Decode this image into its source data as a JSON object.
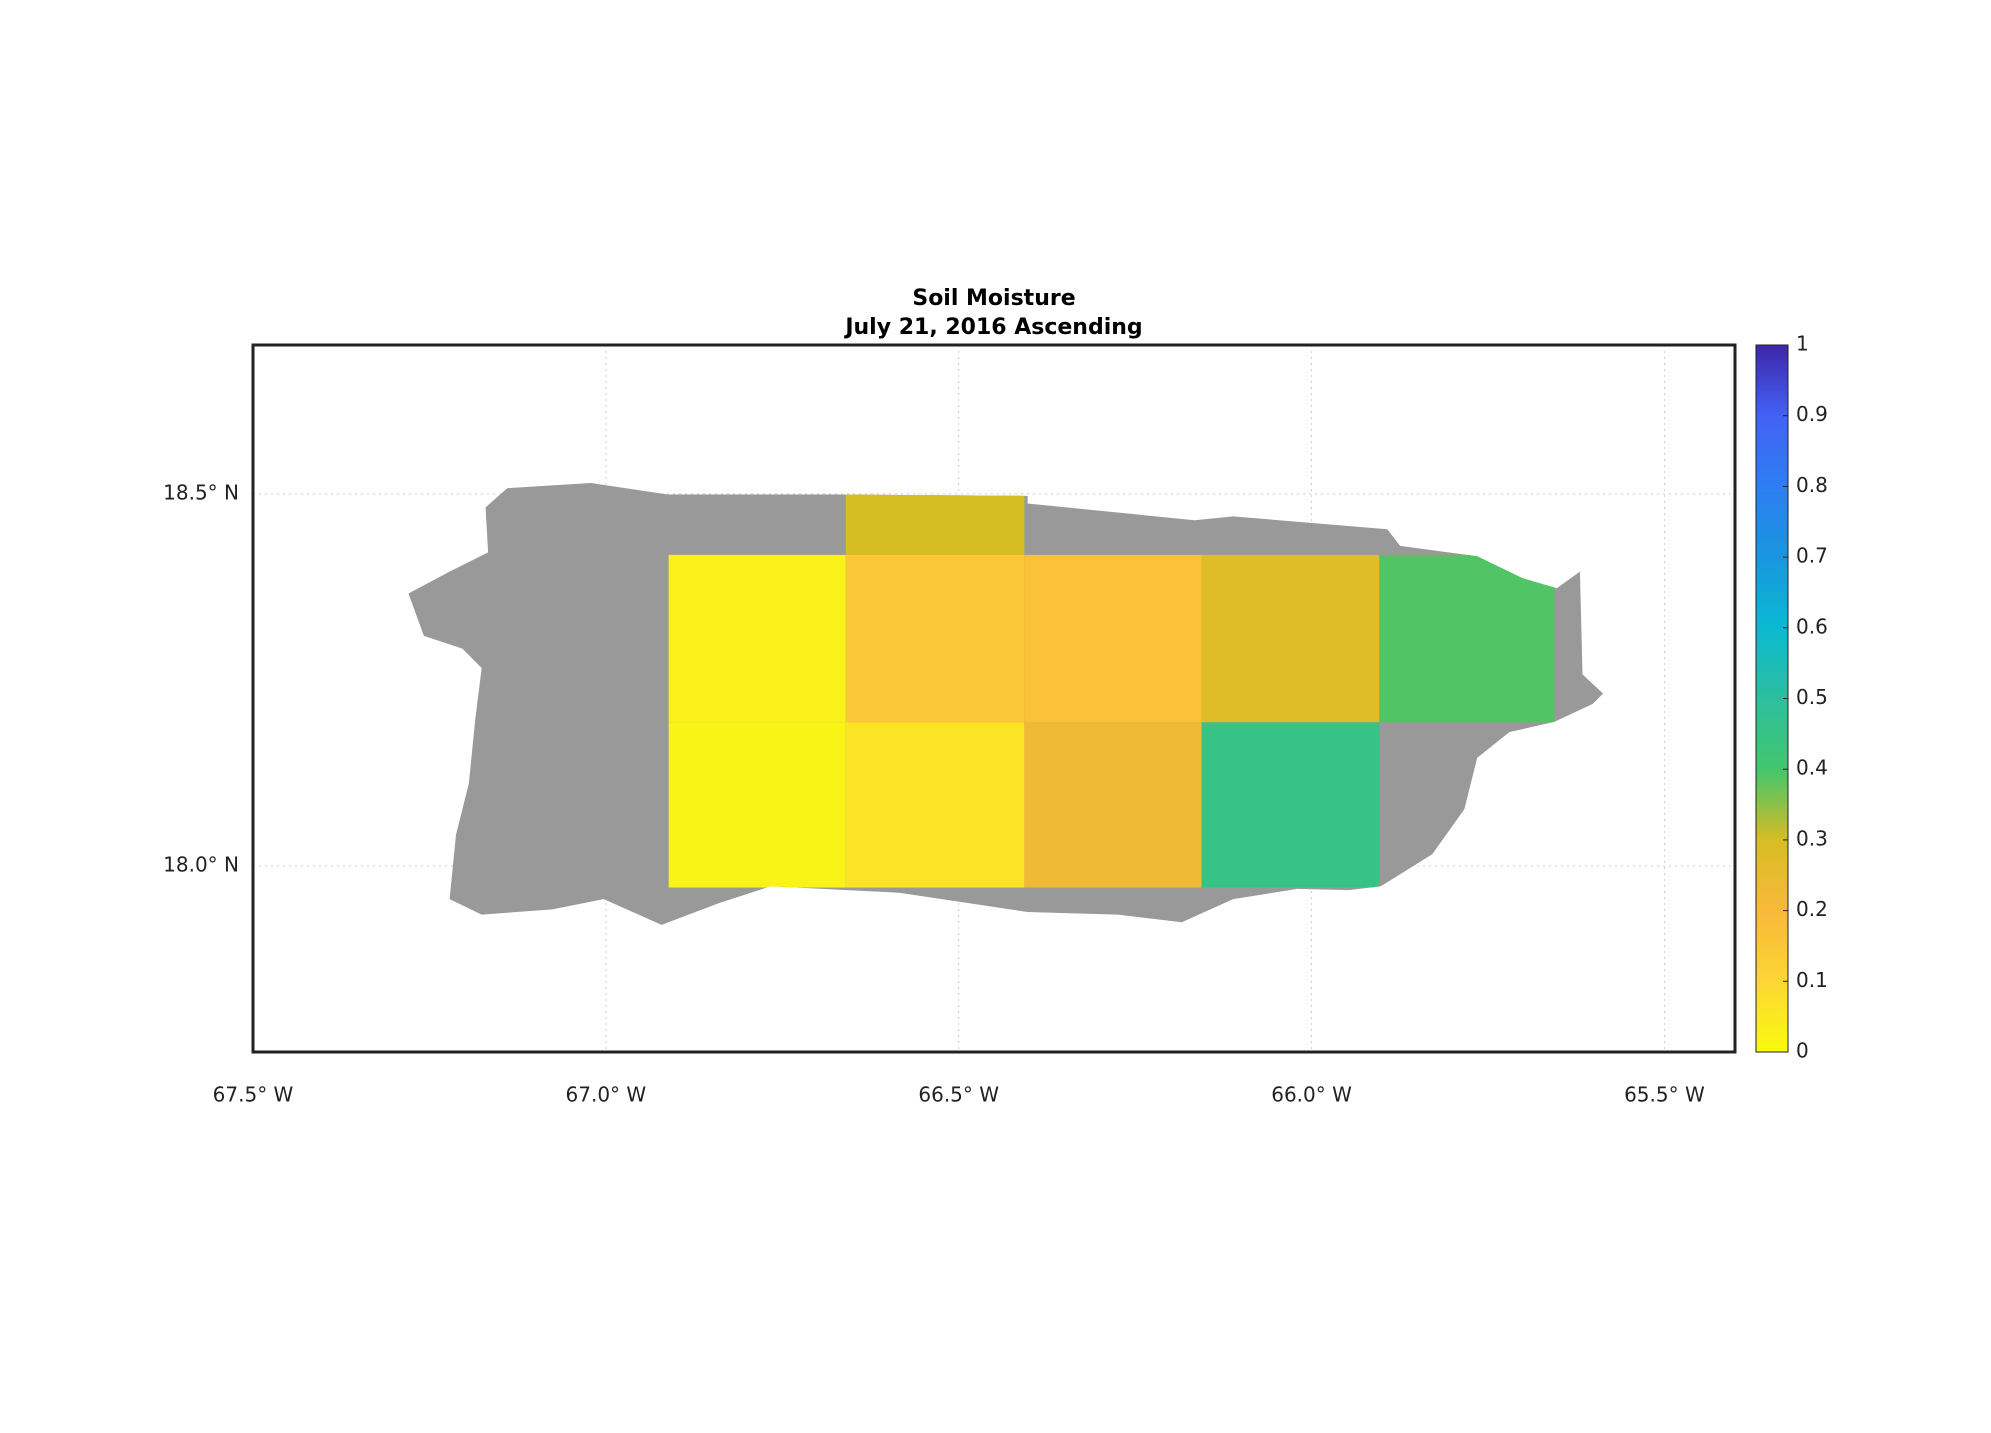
{
  "chart_data": {
    "type": "heatmap",
    "title": "Soil Moisture",
    "subtitle": "July 21, 2016 Ascending",
    "xlim": [
      -67.5,
      -65.4
    ],
    "ylim": [
      17.75,
      18.7
    ],
    "xticks": [
      {
        "value": -67.5,
        "label": "67.5° W"
      },
      {
        "value": -67.0,
        "label": "67.0° W"
      },
      {
        "value": -66.5,
        "label": "66.5° W"
      },
      {
        "value": -66.0,
        "label": "66.0° W"
      },
      {
        "value": -65.5,
        "label": "65.5° W"
      }
    ],
    "yticks": [
      {
        "value": 18.0,
        "label": "18.0° N"
      },
      {
        "value": 18.5,
        "label": "18.5° N"
      }
    ],
    "grid": true,
    "clim": [
      0,
      1
    ],
    "cticks": [
      0,
      0.1,
      0.2,
      0.3,
      0.4,
      0.5,
      0.6,
      0.7,
      0.8,
      0.9,
      1
    ],
    "colormap": [
      "#f9fb0e",
      "#fdd535",
      "#f8b93b",
      "#d6bd23",
      "#42c66d",
      "#2cbf9e",
      "#0bb9d2",
      "#1996de",
      "#2d7ef2",
      "#4361f6",
      "#3e26a8"
    ],
    "cells": [
      {
        "lon": [
          -66.66,
          -66.407
        ],
        "lat": [
          18.418,
          18.5
        ],
        "value": 0.3
      },
      {
        "lon": [
          -66.911,
          -66.66
        ],
        "lat": [
          18.193,
          18.418
        ],
        "value": 0.03
      },
      {
        "lon": [
          -66.66,
          -66.407
        ],
        "lat": [
          18.193,
          18.418
        ],
        "value": 0.15
      },
      {
        "lon": [
          -66.407,
          -66.156
        ],
        "lat": [
          18.193,
          18.418
        ],
        "value": 0.17
      },
      {
        "lon": [
          -66.156,
          -65.904
        ],
        "lat": [
          18.193,
          18.418
        ],
        "value": 0.27
      },
      {
        "lon": [
          -65.904,
          -65.656
        ],
        "lat": [
          18.193,
          18.418
        ],
        "value": 0.39
      },
      {
        "lon": [
          -66.911,
          -66.66
        ],
        "lat": [
          17.971,
          18.193
        ],
        "value": 0.02
      },
      {
        "lon": [
          -66.66,
          -66.407
        ],
        "lat": [
          17.971,
          18.193
        ],
        "value": 0.06
      },
      {
        "lon": [
          -66.407,
          -66.156
        ],
        "lat": [
          17.971,
          18.193
        ],
        "value": 0.22
      },
      {
        "lon": [
          -66.156,
          -65.904
        ],
        "lat": [
          17.971,
          18.193
        ],
        "value": 0.45
      }
    ]
  }
}
